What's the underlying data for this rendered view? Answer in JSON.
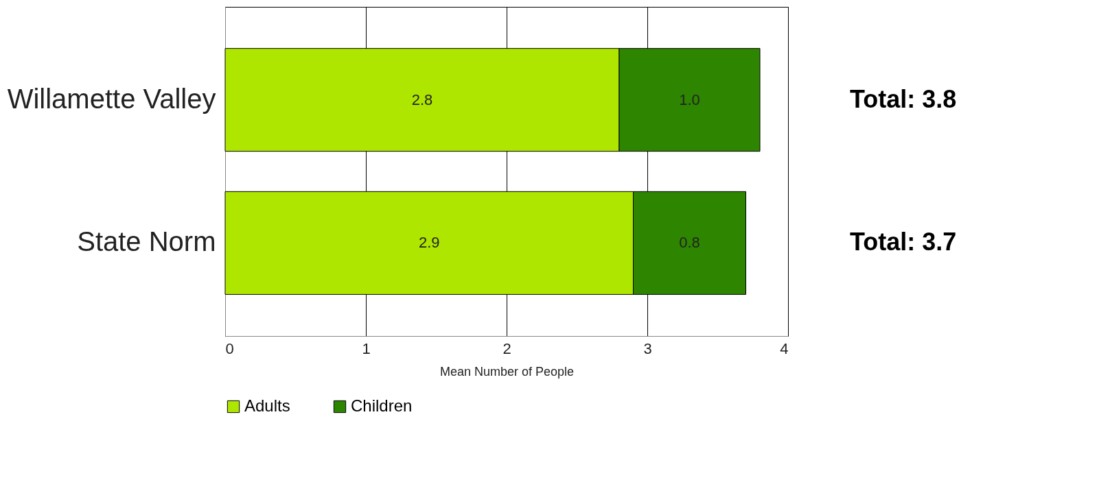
{
  "chart_data": {
    "type": "bar",
    "orientation": "horizontal",
    "stacked": true,
    "categories": [
      "Willamette Valley",
      "State Norm"
    ],
    "series": [
      {
        "name": "Adults",
        "color": "#aee600",
        "values": [
          2.8,
          2.9
        ],
        "value_labels": [
          "2.8",
          "2.9"
        ]
      },
      {
        "name": "Children",
        "color": "#2e8500",
        "values": [
          1.0,
          0.8
        ],
        "value_labels": [
          "1.0",
          "0.8"
        ]
      }
    ],
    "xlabel": "Mean Number of People",
    "xlim": [
      0,
      4
    ],
    "xticks": [
      0,
      1,
      2,
      3,
      4
    ],
    "grid": "x",
    "legend": "bottom",
    "annotations": [
      "Total:  3.8",
      "Total:  3.7"
    ]
  }
}
